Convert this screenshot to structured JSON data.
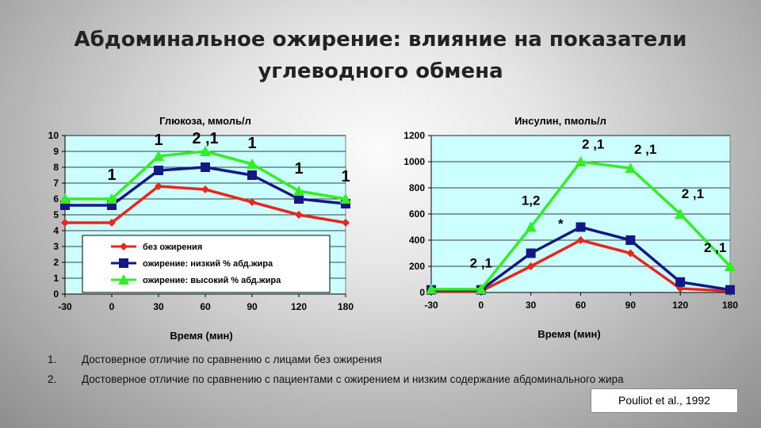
{
  "slide": {
    "title_line1": "Абдоминальное ожирение: влияние на показатели",
    "title_line2": "углеводного обмена",
    "reference": "Pouliot et al., 1992"
  },
  "footnotes": [
    {
      "num": "1.",
      "text": "Достоверное отличие по сравнению с лицами без ожирения"
    },
    {
      "num": "2.",
      "text": "Достоверное отличие по сравнению с пациентами с ожирением и низким содержание абдоминального жира"
    }
  ],
  "colors": {
    "plot_bg": "#ccffff",
    "no_obesity": "#e8271c",
    "low_fat": "#131884",
    "high_fat": "#33ee22"
  },
  "chart_data": [
    {
      "type": "line",
      "title": "Глюкоза, ммоль/л",
      "xlabel": "Время (мин)",
      "ylabel": "",
      "categories": [
        "-30",
        "0",
        "30",
        "60",
        "90",
        "120",
        "180"
      ],
      "ylim": [
        0,
        10
      ],
      "yticks": [
        0,
        1,
        2,
        3,
        4,
        5,
        6,
        7,
        8,
        9,
        10
      ],
      "grid": true,
      "legend": "bottom-center",
      "series": [
        {
          "name": "без ожирения",
          "color": "#e8271c",
          "marker": "diamond",
          "values": [
            4.5,
            4.5,
            6.8,
            6.6,
            5.8,
            5.0,
            4.5
          ]
        },
        {
          "name": "ожирение: низкий % абд.жира",
          "color": "#131884",
          "marker": "square",
          "values": [
            5.6,
            5.6,
            7.8,
            8.0,
            7.5,
            6.0,
            5.7
          ]
        },
        {
          "name": "ожирение: высокий % абд.жира",
          "color": "#33ee22",
          "marker": "triangle",
          "values": [
            6.0,
            6.0,
            8.7,
            9.0,
            8.2,
            6.5,
            6.0
          ]
        }
      ],
      "annotations": [
        {
          "text": "1",
          "category": "0",
          "y": 7.2
        },
        {
          "text": "1",
          "category": "30",
          "y": 9.4
        },
        {
          "text": "2 ,1",
          "category": "60",
          "y": 9.5
        },
        {
          "text": "1",
          "category": "90",
          "y": 9.2
        },
        {
          "text": "1",
          "category": "120",
          "y": 7.6
        },
        {
          "text": "1",
          "category": "180",
          "y": 7.1
        }
      ]
    },
    {
      "type": "line",
      "title": "Инсулин, пмоль/л",
      "xlabel": "Время (мин)",
      "ylabel": "",
      "categories": [
        "-30",
        "0",
        "30",
        "60",
        "90",
        "120",
        "180"
      ],
      "ylim": [
        0,
        1200
      ],
      "yticks": [
        0,
        200,
        400,
        600,
        800,
        1000,
        1200
      ],
      "grid": true,
      "series": [
        {
          "name": "без ожирения",
          "color": "#e8271c",
          "marker": "diamond",
          "values": [
            10,
            10,
            200,
            400,
            300,
            30,
            10
          ]
        },
        {
          "name": "ожирение: низкий % абд.жира",
          "color": "#131884",
          "marker": "square",
          "values": [
            20,
            20,
            300,
            500,
            400,
            80,
            20
          ]
        },
        {
          "name": "ожирение: высокий % абд.жира",
          "color": "#33ee22",
          "marker": "triangle",
          "values": [
            25,
            25,
            500,
            1000,
            950,
            600,
            200
          ]
        }
      ],
      "annotations": [
        {
          "text": "2 ,1",
          "category": "0",
          "y": 190
        },
        {
          "text": "1,2",
          "category": "30",
          "y": 670
        },
        {
          "text": "*",
          "category": "60",
          "y": 490,
          "offset": -0.4
        },
        {
          "text": "2 ,1",
          "category": "60",
          "y": 1100,
          "offset": 0.25
        },
        {
          "text": "2 ,1",
          "category": "90",
          "y": 1060,
          "offset": 0.3
        },
        {
          "text": "2 ,1",
          "category": "120",
          "y": 720,
          "offset": 0.25
        },
        {
          "text": "2 ,1",
          "category": "180",
          "y": 310,
          "offset": -0.3
        }
      ]
    }
  ]
}
